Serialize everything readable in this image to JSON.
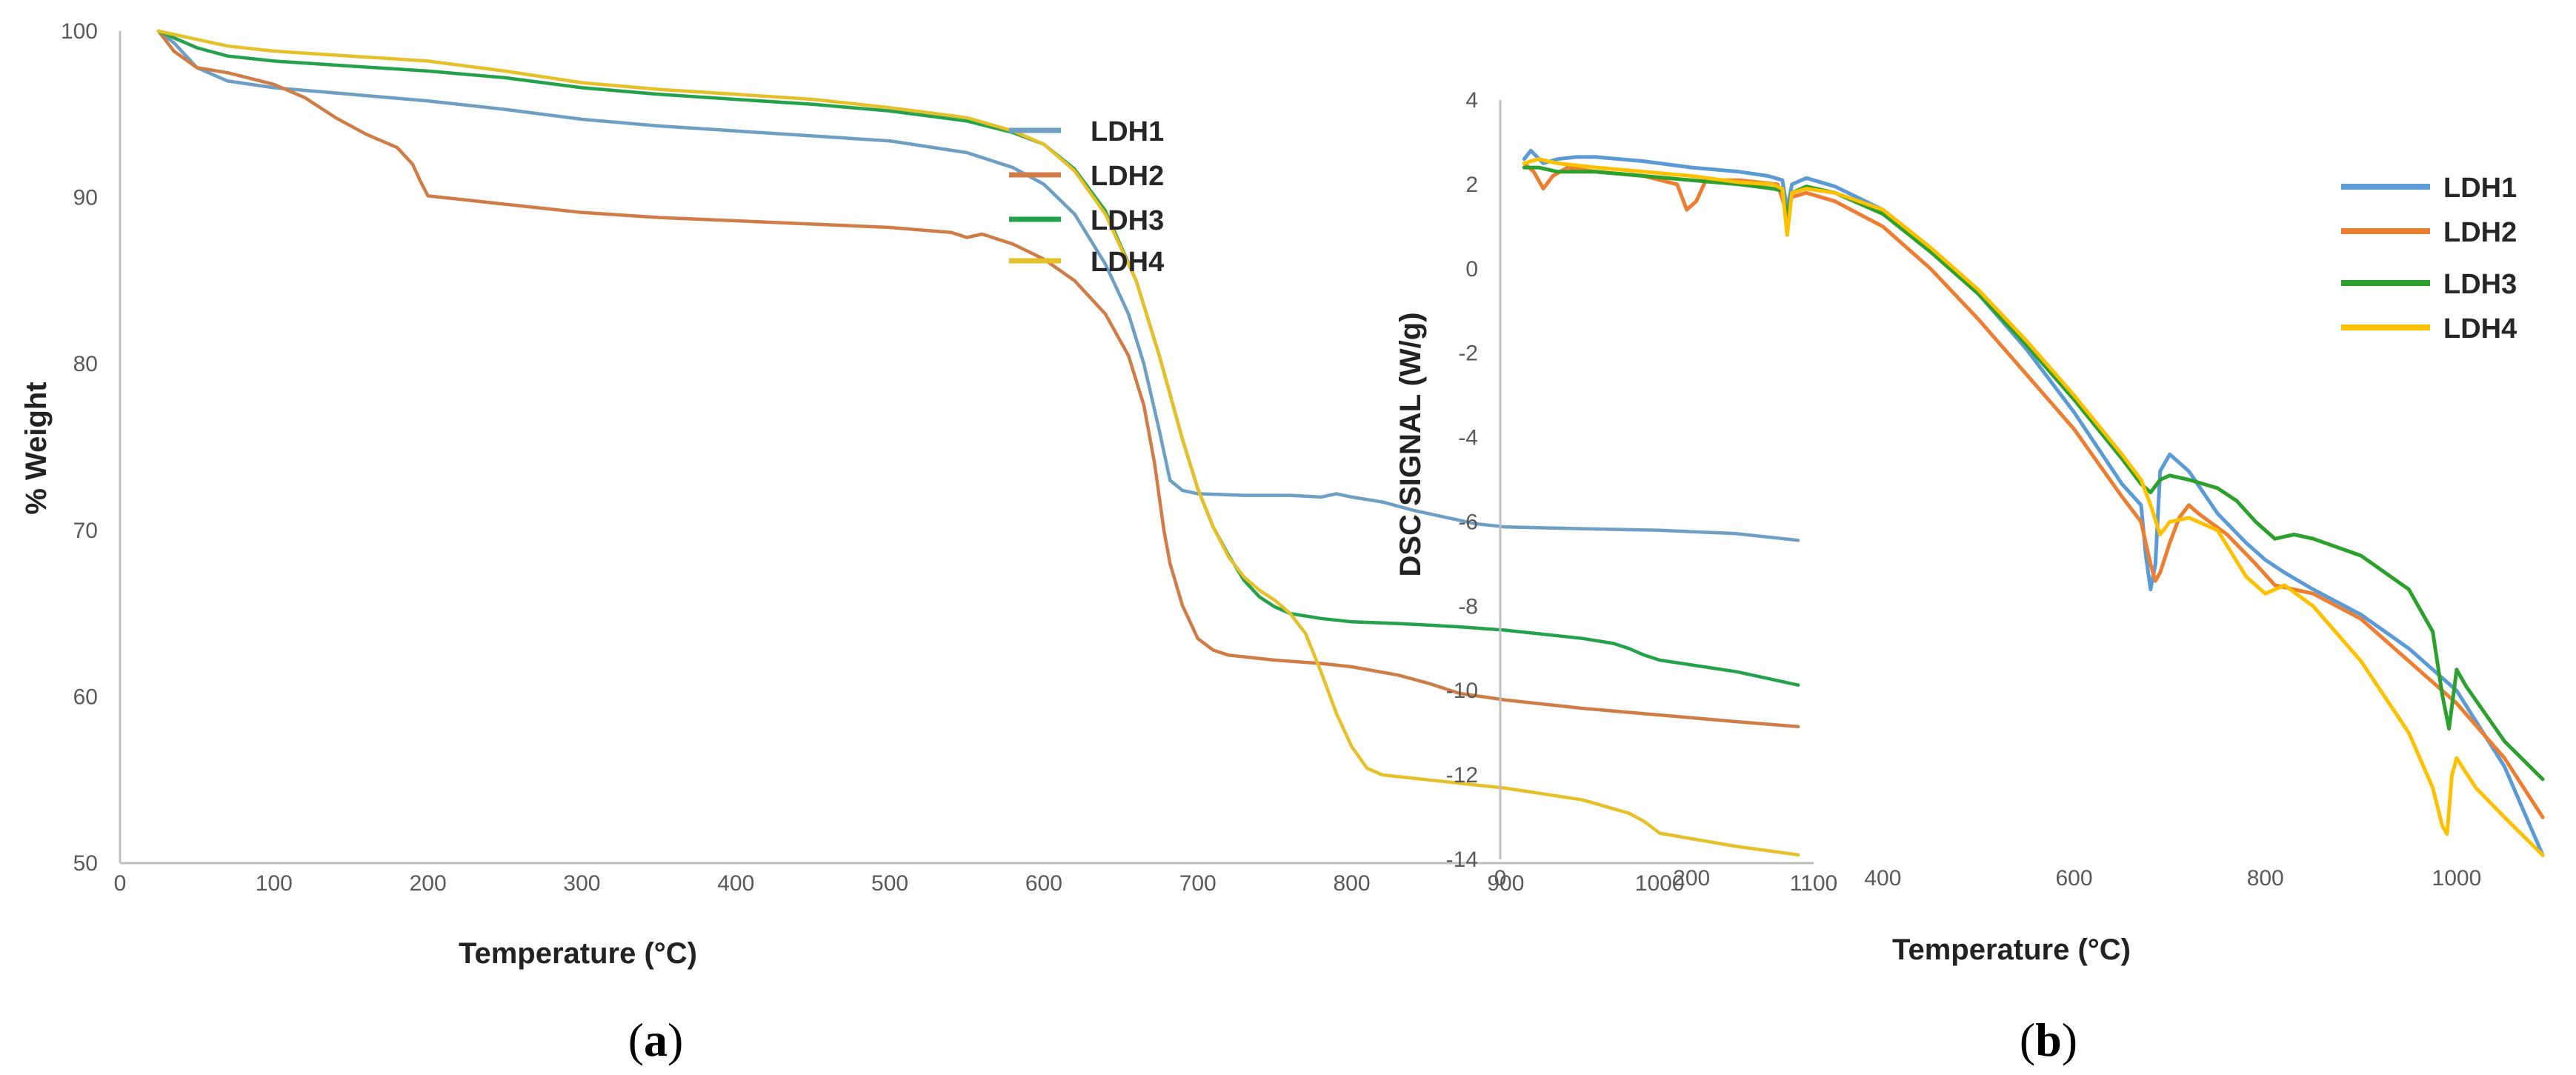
{
  "colors": {
    "LDH1": "#6d9fc4",
    "LDH2": "#cf7c46",
    "LDH3": "#23a24b",
    "LDH4": "#e6c028",
    "LDH1_b": "#5b9bd5",
    "LDH2_b": "#ed7d31",
    "LDH3_b": "#2ca02c",
    "LDH4_b": "#ffc000",
    "axis": "#bfbfbf",
    "tick_text": "#595959"
  },
  "chart_data": [
    {
      "id": "a",
      "type": "line",
      "caption": "a",
      "xlabel": "Temperature (°C)",
      "ylabel": "% Weight",
      "xlim": [
        0,
        1100
      ],
      "ylim": [
        50,
        100
      ],
      "xticks": [
        "0",
        "100",
        "200",
        "300",
        "400",
        "500",
        "600",
        "700",
        "800",
        "900",
        "1000",
        "1100"
      ],
      "yticks": [
        "50",
        "60",
        "70",
        "80",
        "90",
        "100"
      ],
      "grid": false,
      "legend_position": "top-right",
      "series": [
        {
          "name": "LDH1",
          "x": [
            25,
            35,
            50,
            70,
            100,
            150,
            200,
            250,
            300,
            350,
            400,
            450,
            500,
            550,
            580,
            600,
            620,
            640,
            655,
            665,
            675,
            682,
            690,
            700,
            730,
            760,
            780,
            790,
            800,
            820,
            840,
            860,
            880,
            900,
            950,
            1000,
            1050,
            1090
          ],
          "y": [
            100,
            99.3,
            97.8,
            97.0,
            96.6,
            96.2,
            95.8,
            95.3,
            94.7,
            94.3,
            94.0,
            93.7,
            93.4,
            92.7,
            91.8,
            90.8,
            89.0,
            86.0,
            83.0,
            80.0,
            76.0,
            73.0,
            72.4,
            72.2,
            72.1,
            72.1,
            72.0,
            72.2,
            72.0,
            71.7,
            71.2,
            70.8,
            70.4,
            70.2,
            70.1,
            70.0,
            69.8,
            69.4
          ]
        },
        {
          "name": "LDH2",
          "x": [
            25,
            35,
            50,
            70,
            100,
            120,
            140,
            160,
            180,
            190,
            195,
            200,
            210,
            250,
            300,
            350,
            400,
            450,
            500,
            540,
            550,
            560,
            580,
            600,
            620,
            640,
            655,
            665,
            672,
            678,
            682,
            690,
            700,
            710,
            720,
            750,
            780,
            800,
            830,
            850,
            870,
            900,
            950,
            1000,
            1050,
            1090
          ],
          "y": [
            100,
            98.8,
            97.8,
            97.5,
            96.8,
            96.0,
            94.8,
            93.8,
            93.0,
            92.0,
            91.0,
            90.1,
            90.0,
            89.6,
            89.1,
            88.8,
            88.6,
            88.4,
            88.2,
            87.9,
            87.6,
            87.8,
            87.2,
            86.3,
            85.0,
            83.0,
            80.5,
            77.5,
            74.0,
            70.0,
            68.0,
            65.5,
            63.5,
            62.8,
            62.5,
            62.2,
            62.0,
            61.8,
            61.3,
            60.8,
            60.2,
            59.8,
            59.3,
            58.9,
            58.5,
            58.2
          ]
        },
        {
          "name": "LDH3",
          "x": [
            25,
            35,
            50,
            70,
            100,
            150,
            200,
            250,
            300,
            350,
            400,
            450,
            500,
            550,
            580,
            600,
            620,
            640,
            660,
            675,
            690,
            700,
            710,
            720,
            730,
            740,
            750,
            760,
            780,
            800,
            830,
            850,
            870,
            900,
            950,
            970,
            980,
            990,
            1000,
            1050,
            1090
          ],
          "y": [
            100,
            99.6,
            99.0,
            98.5,
            98.2,
            97.9,
            97.6,
            97.2,
            96.6,
            96.2,
            95.9,
            95.6,
            95.2,
            94.6,
            93.9,
            93.2,
            91.7,
            89.2,
            85.0,
            80.5,
            75.5,
            72.5,
            70.2,
            68.5,
            67.0,
            66.0,
            65.4,
            65.0,
            64.7,
            64.5,
            64.4,
            64.3,
            64.2,
            64.0,
            63.5,
            63.2,
            62.9,
            62.5,
            62.2,
            61.5,
            60.7
          ]
        },
        {
          "name": "LDH4",
          "x": [
            25,
            35,
            50,
            70,
            100,
            150,
            200,
            250,
            300,
            350,
            400,
            450,
            500,
            550,
            580,
            600,
            620,
            640,
            660,
            675,
            690,
            700,
            710,
            720,
            730,
            740,
            750,
            760,
            770,
            780,
            790,
            800,
            810,
            820,
            850,
            900,
            950,
            980,
            990,
            1000,
            1050,
            1090
          ],
          "y": [
            100,
            99.8,
            99.5,
            99.1,
            98.8,
            98.5,
            98.2,
            97.6,
            96.9,
            96.5,
            96.2,
            95.9,
            95.4,
            94.8,
            94.0,
            93.2,
            91.6,
            89.0,
            85.0,
            80.5,
            75.5,
            72.5,
            70.2,
            68.4,
            67.2,
            66.4,
            65.8,
            65.0,
            63.8,
            61.5,
            59.0,
            57.0,
            55.7,
            55.3,
            55.0,
            54.5,
            53.8,
            53.0,
            52.5,
            51.8,
            51.0,
            50.5
          ]
        }
      ]
    },
    {
      "id": "b",
      "type": "line",
      "caption": "b",
      "xlabel": "Temperature (°C)",
      "ylabel": "DSC SIGNAL (W/g)",
      "xlim": [
        0,
        1100
      ],
      "ylim": [
        -14,
        4
      ],
      "xticks": [
        "0",
        "200",
        "400",
        "600",
        "800",
        "1000"
      ],
      "yticks": [
        "-14",
        "-12",
        "-10",
        "-8",
        "-6",
        "-4",
        "-2",
        "0",
        "2",
        "4"
      ],
      "grid": false,
      "legend_position": "top-right",
      "series": [
        {
          "name": "LDH1",
          "x": [
            25,
            32,
            45,
            60,
            80,
            100,
            150,
            200,
            250,
            280,
            295,
            300,
            305,
            320,
            350,
            400,
            450,
            500,
            550,
            600,
            650,
            670,
            675,
            680,
            685,
            690,
            700,
            720,
            750,
            780,
            800,
            820,
            850,
            900,
            950,
            990,
            1000,
            1050,
            1090
          ],
          "y": [
            2.6,
            2.8,
            2.5,
            2.6,
            2.65,
            2.65,
            2.55,
            2.4,
            2.3,
            2.2,
            2.1,
            1.4,
            2.0,
            2.15,
            1.95,
            1.4,
            0.5,
            -0.6,
            -1.9,
            -3.4,
            -5.1,
            -5.6,
            -6.8,
            -7.6,
            -7.0,
            -4.8,
            -4.4,
            -4.8,
            -5.8,
            -6.5,
            -6.9,
            -7.2,
            -7.6,
            -8.2,
            -9.0,
            -9.8,
            -10.0,
            -11.8,
            -13.9
          ]
        },
        {
          "name": "LDH2",
          "x": [
            25,
            35,
            45,
            55,
            70,
            100,
            150,
            185,
            195,
            205,
            215,
            250,
            290,
            300,
            305,
            320,
            350,
            400,
            450,
            500,
            550,
            600,
            650,
            670,
            680,
            685,
            690,
            700,
            710,
            720,
            730,
            760,
            790,
            810,
            830,
            850,
            900,
            950,
            1000,
            1050,
            1090
          ],
          "y": [
            2.5,
            2.3,
            1.9,
            2.2,
            2.4,
            2.3,
            2.2,
            2.0,
            1.4,
            1.6,
            2.1,
            2.1,
            2.0,
            1.3,
            1.7,
            1.8,
            1.6,
            1.0,
            0.0,
            -1.2,
            -2.5,
            -3.8,
            -5.4,
            -6.0,
            -7.0,
            -7.4,
            -7.2,
            -6.5,
            -5.9,
            -5.6,
            -5.8,
            -6.3,
            -7.0,
            -7.5,
            -7.6,
            -7.7,
            -8.3,
            -9.3,
            -10.3,
            -11.6,
            -13.0
          ]
        },
        {
          "name": "LDH3",
          "x": [
            25,
            40,
            60,
            100,
            150,
            200,
            250,
            285,
            295,
            300,
            305,
            320,
            350,
            400,
            450,
            500,
            550,
            600,
            650,
            670,
            680,
            690,
            700,
            720,
            750,
            770,
            790,
            810,
            830,
            850,
            900,
            950,
            975,
            985,
            992,
            1000,
            1010,
            1050,
            1090
          ],
          "y": [
            2.4,
            2.4,
            2.3,
            2.3,
            2.2,
            2.1,
            2.0,
            1.9,
            1.85,
            1.2,
            1.8,
            1.95,
            1.8,
            1.3,
            0.4,
            -0.6,
            -1.8,
            -3.1,
            -4.5,
            -5.1,
            -5.3,
            -5.0,
            -4.9,
            -5.0,
            -5.2,
            -5.5,
            -6.0,
            -6.4,
            -6.3,
            -6.4,
            -6.8,
            -7.6,
            -8.6,
            -10.1,
            -10.9,
            -9.5,
            -9.9,
            -11.2,
            -12.1
          ]
        },
        {
          "name": "LDH4",
          "x": [
            25,
            40,
            60,
            100,
            150,
            200,
            250,
            285,
            295,
            300,
            305,
            320,
            350,
            400,
            450,
            500,
            550,
            600,
            650,
            670,
            680,
            690,
            700,
            720,
            750,
            780,
            800,
            820,
            850,
            900,
            950,
            975,
            985,
            990,
            995,
            1000,
            1020,
            1050,
            1090
          ],
          "y": [
            2.5,
            2.6,
            2.5,
            2.4,
            2.3,
            2.2,
            2.05,
            2.0,
            1.9,
            0.8,
            1.8,
            1.9,
            1.8,
            1.4,
            0.5,
            -0.5,
            -1.7,
            -3.0,
            -4.4,
            -5.0,
            -5.6,
            -6.3,
            -6.0,
            -5.9,
            -6.2,
            -7.3,
            -7.7,
            -7.5,
            -8.0,
            -9.3,
            -11.0,
            -12.3,
            -13.2,
            -13.4,
            -12.0,
            -11.6,
            -12.3,
            -13.0,
            -13.9
          ]
        }
      ]
    }
  ]
}
